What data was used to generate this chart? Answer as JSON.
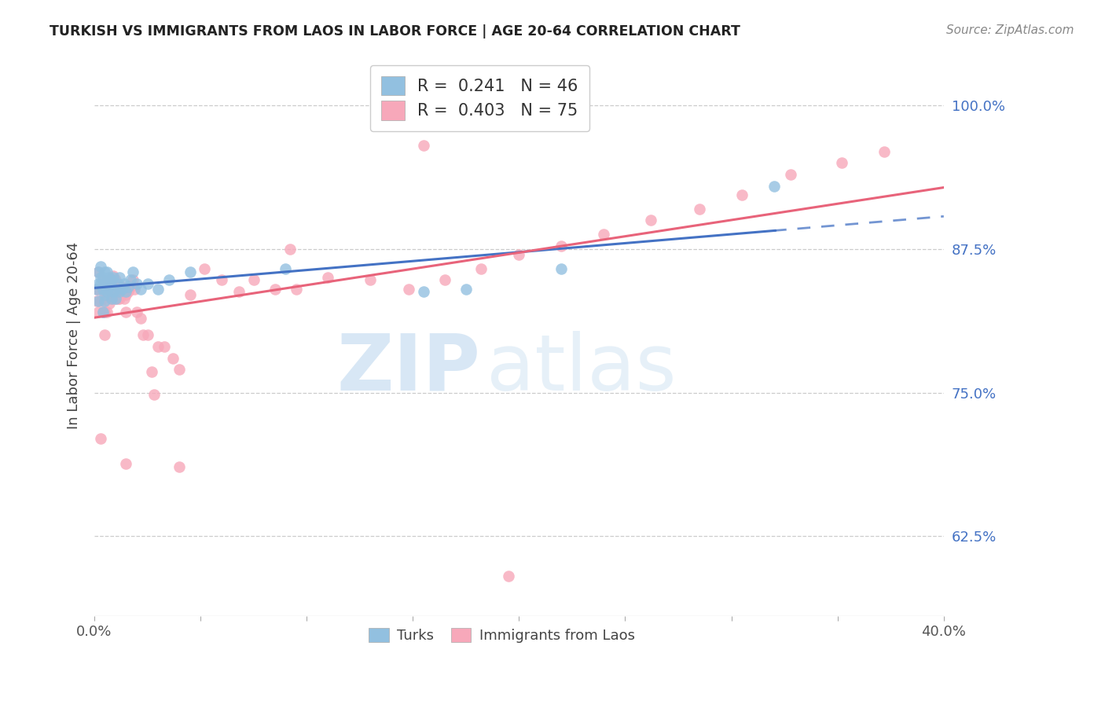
{
  "title": "TURKISH VS IMMIGRANTS FROM LAOS IN LABOR FORCE | AGE 20-64 CORRELATION CHART",
  "source": "Source: ZipAtlas.com",
  "ylabel": "In Labor Force | Age 20-64",
  "xlim": [
    0.0,
    0.4
  ],
  "ylim": [
    0.555,
    1.045
  ],
  "xticks": [
    0.0,
    0.05,
    0.1,
    0.15,
    0.2,
    0.25,
    0.3,
    0.35,
    0.4
  ],
  "xticklabels": [
    "0.0%",
    "",
    "",
    "",
    "",
    "",
    "",
    "",
    "40.0%"
  ],
  "yticks_right": [
    0.625,
    0.75,
    0.875,
    1.0
  ],
  "ytick_labels_right": [
    "62.5%",
    "75.0%",
    "87.5%",
    "100.0%"
  ],
  "blue_color": "#92C0E0",
  "pink_color": "#F7A8BA",
  "blue_line_color": "#4472C4",
  "pink_line_color": "#E8637A",
  "blue_R": 0.241,
  "blue_N": 46,
  "pink_R": 0.403,
  "pink_N": 75,
  "legend_label_blue": "Turks",
  "legend_label_pink": "Immigrants from Laos",
  "watermark_zip": "ZIP",
  "watermark_atlas": "atlas",
  "turks_x": [
    0.001,
    0.002,
    0.002,
    0.002,
    0.003,
    0.003,
    0.003,
    0.004,
    0.004,
    0.004,
    0.005,
    0.005,
    0.005,
    0.005,
    0.006,
    0.006,
    0.006,
    0.006,
    0.007,
    0.007,
    0.008,
    0.008,
    0.009,
    0.009,
    0.01,
    0.01,
    0.011,
    0.012,
    0.012,
    0.013,
    0.014,
    0.015,
    0.016,
    0.017,
    0.018,
    0.02,
    0.022,
    0.025,
    0.03,
    0.035,
    0.045,
    0.09,
    0.155,
    0.175,
    0.22,
    0.32
  ],
  "turks_y": [
    0.84,
    0.845,
    0.855,
    0.83,
    0.845,
    0.85,
    0.86,
    0.84,
    0.85,
    0.82,
    0.835,
    0.845,
    0.855,
    0.83,
    0.84,
    0.848,
    0.855,
    0.838,
    0.842,
    0.85,
    0.832,
    0.848,
    0.838,
    0.85,
    0.84,
    0.832,
    0.845,
    0.838,
    0.85,
    0.84,
    0.845,
    0.838,
    0.842,
    0.848,
    0.855,
    0.845,
    0.84,
    0.845,
    0.84,
    0.848,
    0.855,
    0.858,
    0.838,
    0.84,
    0.858,
    0.93
  ],
  "laos_x": [
    0.001,
    0.001,
    0.002,
    0.002,
    0.002,
    0.003,
    0.003,
    0.003,
    0.004,
    0.004,
    0.004,
    0.005,
    0.005,
    0.005,
    0.006,
    0.006,
    0.006,
    0.007,
    0.007,
    0.007,
    0.008,
    0.008,
    0.009,
    0.009,
    0.01,
    0.01,
    0.011,
    0.011,
    0.012,
    0.012,
    0.013,
    0.013,
    0.014,
    0.015,
    0.015,
    0.016,
    0.017,
    0.018,
    0.019,
    0.02,
    0.022,
    0.023,
    0.025,
    0.027,
    0.03,
    0.033,
    0.037,
    0.04,
    0.045,
    0.052,
    0.06,
    0.068,
    0.075,
    0.085,
    0.095,
    0.11,
    0.13,
    0.148,
    0.165,
    0.182,
    0.2,
    0.22,
    0.24,
    0.262,
    0.285,
    0.305,
    0.328,
    0.352,
    0.372,
    0.195,
    0.092,
    0.155,
    0.04,
    0.028,
    0.015
  ],
  "laos_y": [
    0.83,
    0.84,
    0.82,
    0.84,
    0.855,
    0.71,
    0.83,
    0.84,
    0.82,
    0.84,
    0.848,
    0.8,
    0.82,
    0.838,
    0.82,
    0.835,
    0.845,
    0.828,
    0.84,
    0.848,
    0.832,
    0.848,
    0.838,
    0.852,
    0.832,
    0.848,
    0.832,
    0.842,
    0.832,
    0.84,
    0.835,
    0.842,
    0.832,
    0.82,
    0.835,
    0.838,
    0.842,
    0.848,
    0.84,
    0.82,
    0.815,
    0.8,
    0.8,
    0.768,
    0.79,
    0.79,
    0.78,
    0.77,
    0.835,
    0.858,
    0.848,
    0.838,
    0.848,
    0.84,
    0.84,
    0.85,
    0.848,
    0.84,
    0.848,
    0.858,
    0.87,
    0.878,
    0.888,
    0.9,
    0.91,
    0.922,
    0.94,
    0.95,
    0.96,
    0.59,
    0.875,
    0.965,
    0.685,
    0.748,
    0.688
  ]
}
